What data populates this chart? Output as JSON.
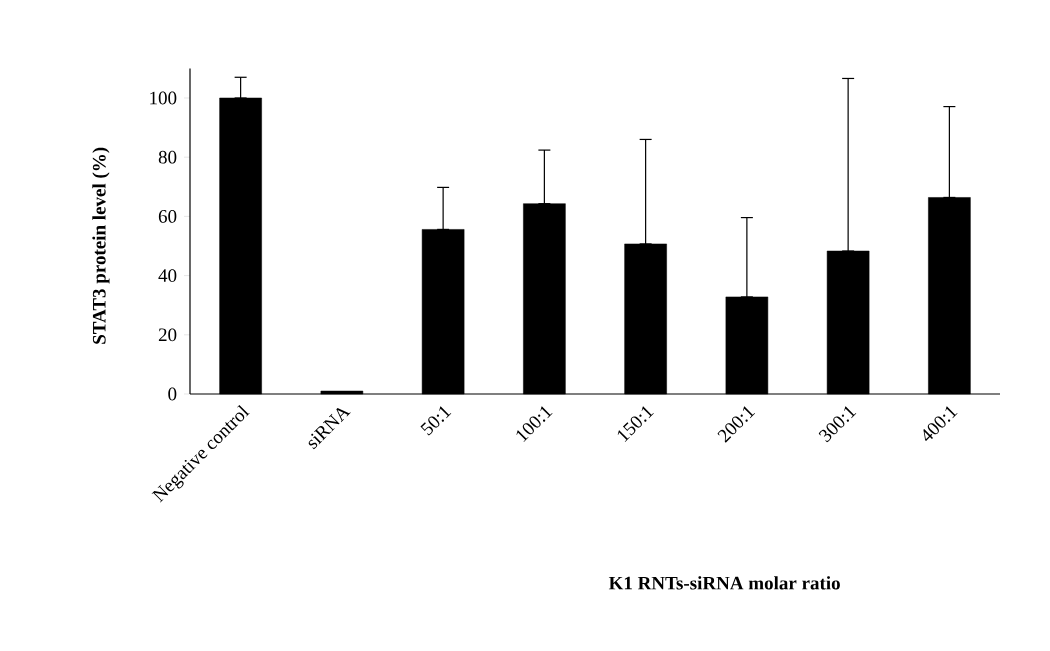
{
  "chart_data": {
    "type": "bar",
    "categories": [
      "Negative control",
      "siRNA",
      "50:1",
      "100:1",
      "150:1",
      "200:1",
      "300:1",
      "400:1"
    ],
    "values": [
      100,
      1,
      55.6,
      64.3,
      50.7,
      32.8,
      48.3,
      66.4
    ],
    "errors": [
      [
        100,
        107
      ],
      null,
      [
        55.6,
        69.8
      ],
      [
        64.3,
        82.4
      ],
      [
        50.7,
        86.0
      ],
      [
        32.8,
        59.6
      ],
      [
        48.3,
        106.6
      ],
      [
        66.4,
        97.1
      ]
    ],
    "color": "#000000",
    "xlabel": "K1 RNTs-siRNA molar ratio",
    "ylabel": "STAT3 protein level (%)",
    "ylim": [
      0,
      110
    ],
    "yticks": [
      0,
      20,
      40,
      60,
      80,
      100
    ],
    "grid": false
  }
}
